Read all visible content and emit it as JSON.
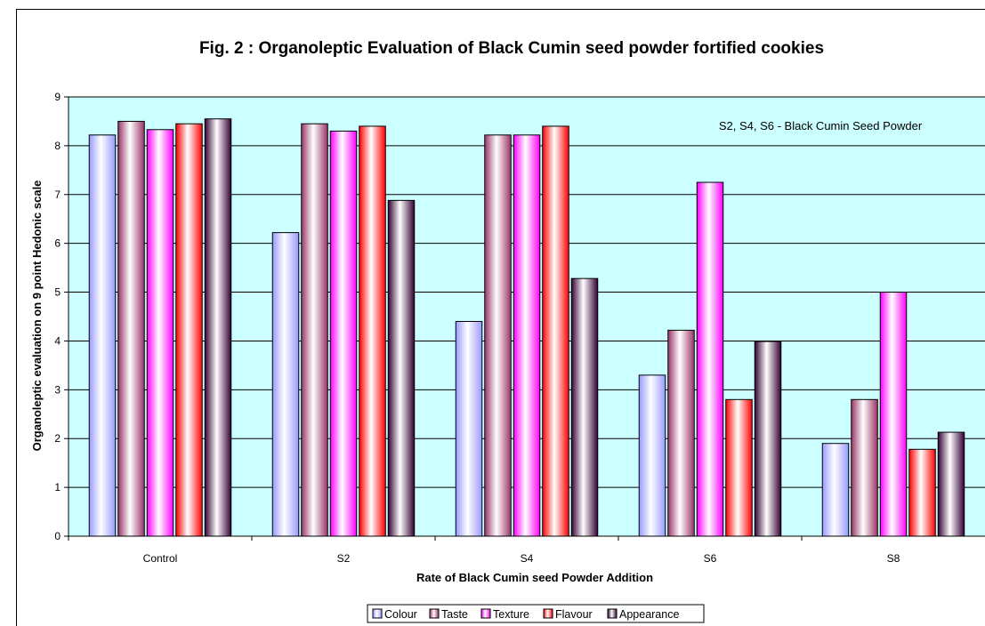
{
  "chart_data": {
    "type": "bar",
    "title": "Fig. 2 : Organoleptic Evaluation of Black Cumin seed powder fortified cookies",
    "xlabel": "Rate of Black Cumin seed Powder Addition",
    "ylabel": "Organoleptic evaluation on 9 point Hedonic scale",
    "ylim": [
      0,
      9
    ],
    "yticks": [
      0,
      1,
      2,
      3,
      4,
      5,
      6,
      7,
      8,
      9
    ],
    "categories": [
      "Control",
      "S2",
      "S4",
      "S6",
      "S8"
    ],
    "series": [
      {
        "name": "Colour",
        "color": "#9999ff",
        "values": [
          8.22,
          6.22,
          4.4,
          3.3,
          1.9
        ]
      },
      {
        "name": "Taste",
        "color": "#993366",
        "values": [
          8.5,
          8.45,
          8.22,
          4.22,
          2.8
        ]
      },
      {
        "name": "Texture",
        "color": "#ff00ff",
        "values": [
          8.33,
          8.3,
          8.22,
          7.25,
          5.0
        ]
      },
      {
        "name": "Flavour",
        "color": "#ff0000",
        "values": [
          8.45,
          8.4,
          8.4,
          2.8,
          1.78
        ]
      },
      {
        "name": "Appearance",
        "color": "#330033",
        "values": [
          8.55,
          6.88,
          5.28,
          3.99,
          2.13
        ]
      }
    ],
    "annotation": "S2, S4, S6 - Black Cumin Seed Powder",
    "plot_background": "#ccffff",
    "grid": true,
    "legend_position": "bottom"
  }
}
